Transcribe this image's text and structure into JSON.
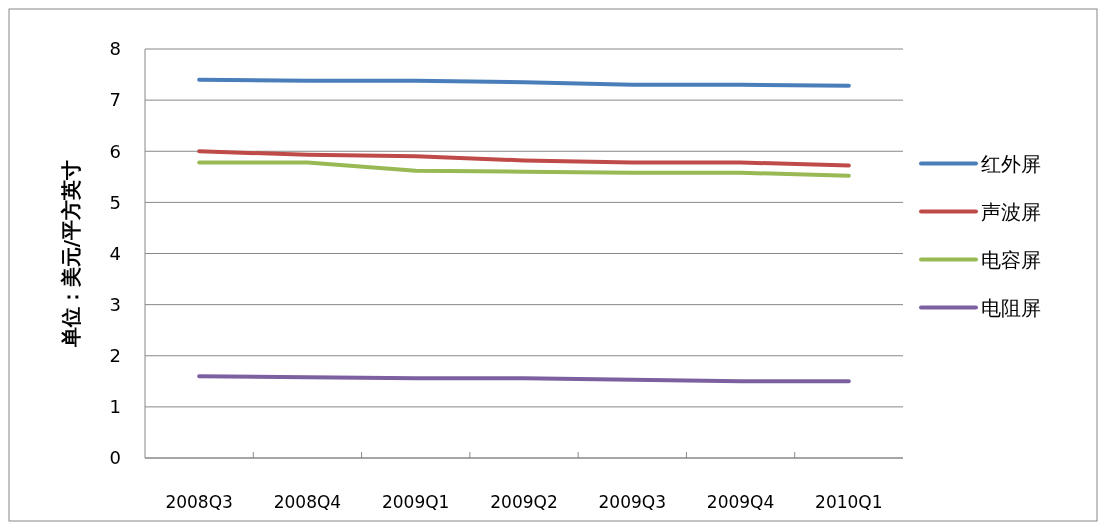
{
  "chart_data": {
    "type": "line",
    "ylabel": "单位：美元/平方英寸",
    "categories": [
      "2008Q3",
      "2008Q4",
      "2009Q1",
      "2009Q2",
      "2009Q3",
      "2009Q4",
      "2010Q1"
    ],
    "series": [
      {
        "name": "红外屏",
        "color": "#4a7ebb",
        "values": [
          7.4,
          7.38,
          7.38,
          7.35,
          7.3,
          7.3,
          7.28
        ]
      },
      {
        "name": "声波屏",
        "color": "#be4b48",
        "values": [
          6.0,
          5.93,
          5.9,
          5.82,
          5.78,
          5.78,
          5.72
        ]
      },
      {
        "name": "电容屏",
        "color": "#98b954",
        "values": [
          5.78,
          5.78,
          5.62,
          5.6,
          5.58,
          5.58,
          5.52
        ]
      },
      {
        "name": "电阻屏",
        "color": "#7d60a0",
        "values": [
          1.6,
          1.58,
          1.56,
          1.56,
          1.53,
          1.5,
          1.5
        ]
      }
    ],
    "ylim": [
      0,
      8
    ],
    "yticks": [
      0,
      1,
      2,
      3,
      4,
      5,
      6,
      7,
      8
    ],
    "grid": "y",
    "legend": "right",
    "marker": "none",
    "line_style": "solid"
  }
}
